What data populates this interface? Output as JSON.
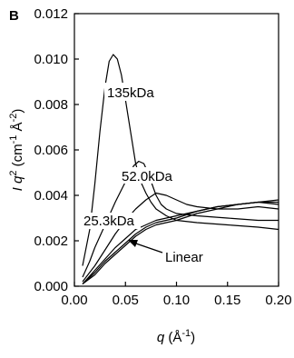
{
  "chart_data": {
    "type": "line",
    "panel_label": "B",
    "xlabel": {
      "symbol": "q",
      "unit_open": " (Å",
      "exp": "-1",
      "unit_close": ")"
    },
    "ylabel": {
      "i": "I",
      "q": " q",
      "q_exp": "2",
      "unit_open": " (cm",
      "exp1": "-1",
      "mid": " Å",
      "exp2": "-2",
      "unit_close": ")"
    },
    "xlim": [
      0.0,
      0.2
    ],
    "ylim": [
      0.0,
      0.012
    ],
    "x_ticks": [
      "0.00",
      "0.05",
      "0.10",
      "0.15",
      "0.20"
    ],
    "x_tick_values": [
      0.0,
      0.05,
      0.1,
      0.15,
      0.2
    ],
    "y_ticks": [
      "0.000",
      "0.002",
      "0.004",
      "0.006",
      "0.008",
      "0.010",
      "0.012"
    ],
    "y_tick_values": [
      0.0,
      0.002,
      0.004,
      0.006,
      0.008,
      0.01,
      0.012
    ],
    "grid": false,
    "annotations": {
      "a135": "135kDa",
      "a52": "52.0kDa",
      "a25": "25.3kDa",
      "linear": "Linear"
    },
    "series": [
      {
        "points": [
          [
            0.008,
            0.0009
          ],
          [
            0.015,
            0.0025
          ],
          [
            0.02,
            0.0045
          ],
          [
            0.025,
            0.0068
          ],
          [
            0.03,
            0.0088
          ],
          [
            0.034,
            0.0099
          ],
          [
            0.038,
            0.0102
          ],
          [
            0.042,
            0.01
          ],
          [
            0.046,
            0.0093
          ],
          [
            0.05,
            0.0082
          ],
          [
            0.055,
            0.0068
          ],
          [
            0.06,
            0.0054
          ],
          [
            0.065,
            0.0046
          ],
          [
            0.07,
            0.0041
          ],
          [
            0.075,
            0.0037
          ],
          [
            0.08,
            0.0034
          ],
          [
            0.09,
            0.0031
          ],
          [
            0.1,
            0.0029
          ],
          [
            0.12,
            0.0028
          ],
          [
            0.15,
            0.0027
          ],
          [
            0.18,
            0.0026
          ],
          [
            0.2,
            0.0025
          ]
        ]
      },
      {
        "points": [
          [
            0.008,
            0.0004
          ],
          [
            0.015,
            0.0011
          ],
          [
            0.02,
            0.0017
          ],
          [
            0.03,
            0.0027
          ],
          [
            0.04,
            0.0037
          ],
          [
            0.05,
            0.0046
          ],
          [
            0.058,
            0.0053
          ],
          [
            0.063,
            0.0055
          ],
          [
            0.068,
            0.0054
          ],
          [
            0.072,
            0.005
          ],
          [
            0.076,
            0.0045
          ],
          [
            0.08,
            0.004
          ],
          [
            0.085,
            0.0036
          ],
          [
            0.09,
            0.0034
          ],
          [
            0.1,
            0.0032
          ],
          [
            0.12,
            0.0031
          ],
          [
            0.15,
            0.003
          ],
          [
            0.18,
            0.0029
          ],
          [
            0.2,
            0.0029
          ]
        ]
      },
      {
        "points": [
          [
            0.008,
            0.0002
          ],
          [
            0.02,
            0.0009
          ],
          [
            0.03,
            0.0016
          ],
          [
            0.04,
            0.0023
          ],
          [
            0.05,
            0.0029
          ],
          [
            0.06,
            0.0034
          ],
          [
            0.07,
            0.0038
          ],
          [
            0.08,
            0.0041
          ],
          [
            0.09,
            0.004
          ],
          [
            0.1,
            0.0038
          ],
          [
            0.11,
            0.0036
          ],
          [
            0.12,
            0.0035
          ],
          [
            0.14,
            0.0034
          ],
          [
            0.16,
            0.0034
          ],
          [
            0.18,
            0.0035
          ],
          [
            0.2,
            0.0034
          ]
        ]
      },
      {
        "points": [
          [
            0.008,
            0.0001
          ],
          [
            0.02,
            0.0007
          ],
          [
            0.03,
            0.0012
          ],
          [
            0.04,
            0.0017
          ],
          [
            0.05,
            0.0021
          ],
          [
            0.06,
            0.0025
          ],
          [
            0.07,
            0.0027
          ],
          [
            0.08,
            0.0029
          ],
          [
            0.09,
            0.003
          ],
          [
            0.1,
            0.0031
          ],
          [
            0.12,
            0.0033
          ],
          [
            0.14,
            0.0035
          ],
          [
            0.16,
            0.0036
          ],
          [
            0.18,
            0.0037
          ],
          [
            0.2,
            0.0037
          ]
        ]
      },
      {
        "points": [
          [
            0.008,
            0.0001
          ],
          [
            0.02,
            0.0006
          ],
          [
            0.03,
            0.0011
          ],
          [
            0.04,
            0.0015
          ],
          [
            0.05,
            0.0019
          ],
          [
            0.06,
            0.0023
          ],
          [
            0.07,
            0.0026
          ],
          [
            0.08,
            0.0028
          ],
          [
            0.09,
            0.0029
          ],
          [
            0.1,
            0.003
          ],
          [
            0.12,
            0.0033
          ],
          [
            0.14,
            0.0035
          ],
          [
            0.16,
            0.0036
          ],
          [
            0.18,
            0.0037
          ],
          [
            0.2,
            0.0038
          ]
        ]
      },
      {
        "points": [
          [
            0.008,
            0.0001
          ],
          [
            0.02,
            0.0005
          ],
          [
            0.03,
            0.001
          ],
          [
            0.04,
            0.0014
          ],
          [
            0.05,
            0.0018
          ],
          [
            0.06,
            0.0022
          ],
          [
            0.07,
            0.0025
          ],
          [
            0.08,
            0.0027
          ],
          [
            0.09,
            0.0028
          ],
          [
            0.1,
            0.0029
          ],
          [
            0.12,
            0.0032
          ],
          [
            0.14,
            0.0034
          ],
          [
            0.16,
            0.0036
          ],
          [
            0.18,
            0.0037
          ],
          [
            0.2,
            0.0036
          ]
        ]
      }
    ]
  }
}
